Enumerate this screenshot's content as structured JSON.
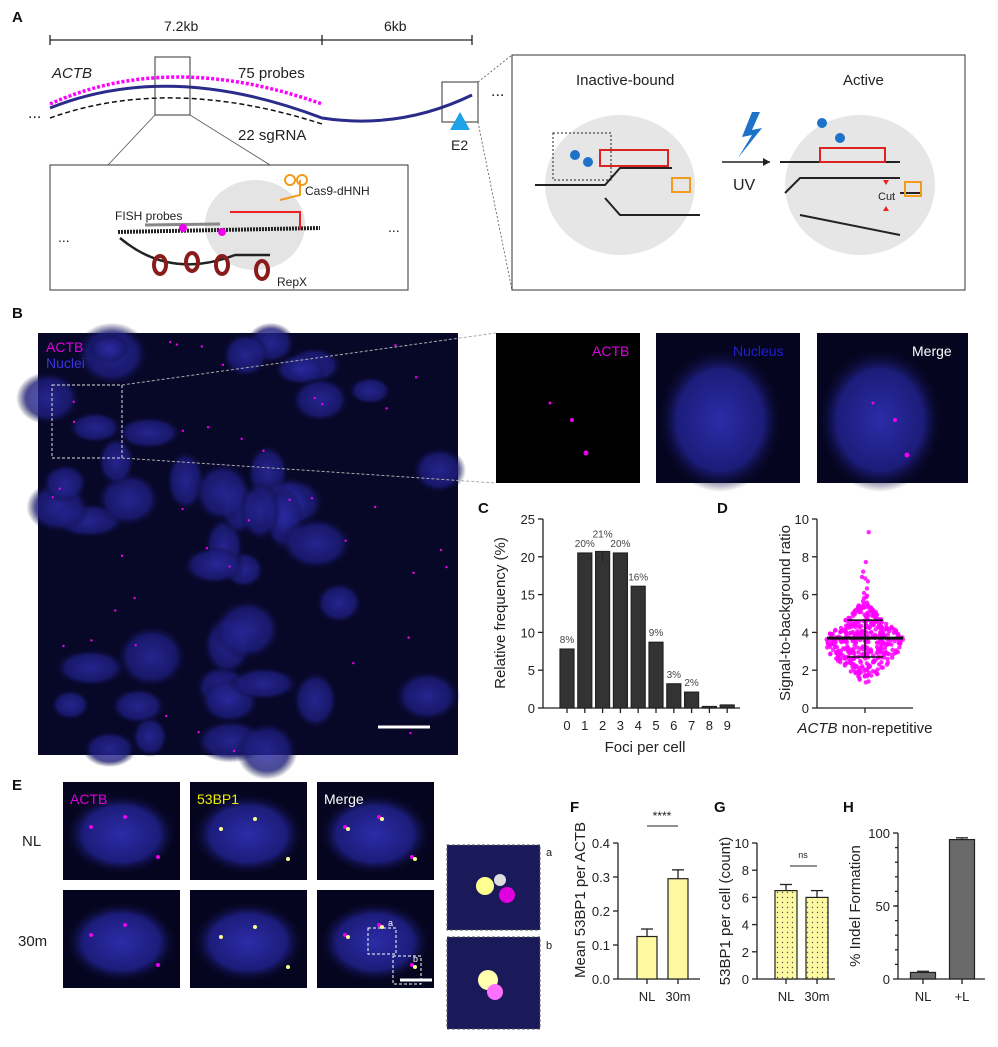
{
  "panels": {
    "A": {
      "label": "A",
      "scale_left": "7.2kb",
      "scale_right": "6kb",
      "gene": "ACTB",
      "probes": "75 probes",
      "sgrna": "22 sgRNA",
      "site": "E2",
      "inset": {
        "fish": "FISH probes",
        "cas9": "Cas9-dHNH",
        "repx": "RepX",
        "ellipsis": "..."
      },
      "mechanism": {
        "inactive": "Inactive-bound",
        "active": "Active",
        "uv": "UV",
        "cut": "Cut"
      },
      "ellipsis": "..."
    },
    "B": {
      "label": "B",
      "legend_actb": "ACTB",
      "legend_nuclei": "Nuclei",
      "crops": [
        "ACTB",
        "Nucleus",
        "Merge"
      ]
    },
    "E": {
      "label": "E",
      "columns": [
        "ACTB",
        "53BP1",
        "Merge"
      ],
      "rows": [
        "NL",
        "30m"
      ],
      "zoom_labels": [
        "a",
        "b"
      ]
    }
  },
  "colors": {
    "magenta": "#ff00ff",
    "nuclei_blue": "#2a2ad0",
    "yellow_bar": "#fdf9a0",
    "gray_bar": "#6a6a6a",
    "dark_bar": "#333333",
    "blue_gene": "#2b2b8c"
  },
  "chart_data": [
    {
      "id": "C",
      "label": "C",
      "type": "bar",
      "categories": [
        "0",
        "1",
        "2",
        "3",
        "4",
        "5",
        "6",
        "7",
        "8",
        "9"
      ],
      "values": [
        7.8,
        20.5,
        20.7,
        20.5,
        16.1,
        8.7,
        3.2,
        2.1,
        0.2,
        0.4
      ],
      "data_labels": [
        "8%",
        "20%",
        "21%",
        "20%",
        "16%",
        "9%",
        "3%",
        "2%",
        "",
        ""
      ],
      "xlabel": "Foci per cell",
      "ylabel": "Relative frequency (%)",
      "ylim": [
        0,
        25
      ],
      "yticks": [
        "0",
        "5",
        "10",
        "15",
        "20",
        "25"
      ]
    },
    {
      "id": "D",
      "label": "D",
      "type": "scatter",
      "categories": [
        "ACTB non-repetitive"
      ],
      "xlabel_italic": "ACTB",
      "xlabel_rest": " non-repetitive",
      "ylabel": "Signal-to-background ratio",
      "mean": 3.7,
      "sd_upper": 4.65,
      "sd_lower": 2.7,
      "min": 1.5,
      "max": 9.3,
      "ylim": [
        0,
        10
      ],
      "yticks": [
        "0",
        "2",
        "4",
        "6",
        "8",
        "10"
      ]
    },
    {
      "id": "F",
      "label": "F",
      "type": "bar",
      "categories": [
        "NL",
        "30m"
      ],
      "values": [
        0.125,
        0.295
      ],
      "errors": [
        0.022,
        0.026
      ],
      "ylabel": "Mean 53BP1 per ACTB",
      "ylim": [
        0,
        0.4
      ],
      "yticks": [
        "0.0",
        "0.1",
        "0.2",
        "0.3",
        "0.4"
      ],
      "significance": "****"
    },
    {
      "id": "G",
      "label": "G",
      "type": "bar",
      "categories": [
        "NL",
        "30m"
      ],
      "values": [
        6.5,
        6.0
      ],
      "errors": [
        0.45,
        0.5
      ],
      "ylabel": "53BP1 per cell (count)",
      "ylim": [
        0,
        10
      ],
      "yticks": [
        "0",
        "2",
        "4",
        "6",
        "8",
        "10"
      ],
      "significance": "ns"
    },
    {
      "id": "H",
      "label": "H",
      "type": "bar",
      "categories": [
        "NL",
        "+L"
      ],
      "values": [
        4.5,
        95.5
      ],
      "errors": [
        0.8,
        1.2
      ],
      "ylabel": "% Indel Formation",
      "ylim": [
        0,
        100
      ],
      "yticks": [
        "0",
        "50",
        "100"
      ]
    }
  ]
}
